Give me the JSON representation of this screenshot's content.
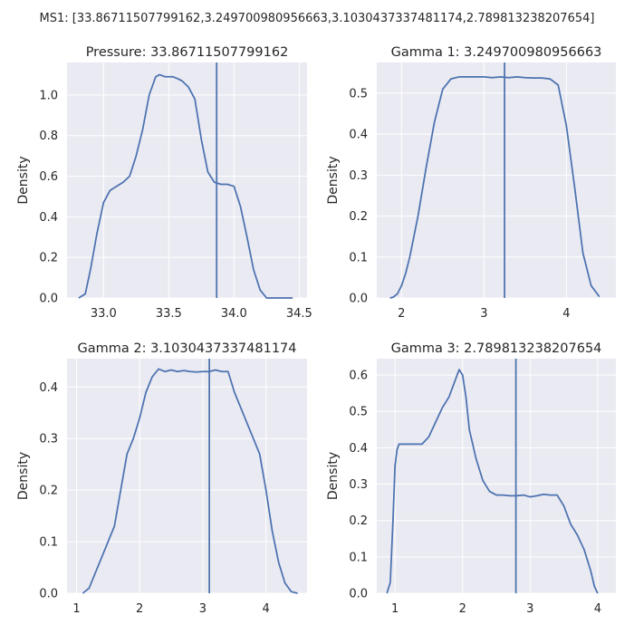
{
  "suptitle": "MS1: [33.86711507799162,3.249700980956663,3.1030437337481174,2.789813238207654]",
  "chart_data": [
    {
      "type": "line",
      "title": "Pressure: 33.86711507799162",
      "ylabel": "Density",
      "xlabel": "",
      "xlim": [
        32.72,
        34.56
      ],
      "ylim": [
        0,
        1.16
      ],
      "xticks": [
        33.0,
        33.5,
        34.0,
        34.5
      ],
      "xtick_labels": [
        "33.0",
        "33.5",
        "34.0",
        "34.5"
      ],
      "yticks": [
        0.0,
        0.2,
        0.4,
        0.6,
        0.8,
        1.0
      ],
      "ytick_labels": [
        "0.0",
        "0.2",
        "0.4",
        "0.6",
        "0.8",
        "1.0"
      ],
      "vline": 33.86711507799162,
      "grid": true,
      "series": [
        {
          "x": [
            32.81,
            32.86,
            32.9,
            32.95,
            33.0,
            33.05,
            33.1,
            33.15,
            33.2,
            33.25,
            33.3,
            33.35,
            33.4,
            33.43,
            33.47,
            33.5,
            33.53,
            33.57,
            33.6,
            33.65,
            33.7,
            33.75,
            33.8,
            33.85,
            33.9,
            33.95,
            34.0,
            34.05,
            34.1,
            34.15,
            34.2,
            34.25,
            34.3,
            34.35,
            34.4,
            34.45
          ],
          "y": [
            0.0,
            0.02,
            0.14,
            0.32,
            0.47,
            0.53,
            0.55,
            0.57,
            0.6,
            0.7,
            0.83,
            1.0,
            1.09,
            1.1,
            1.09,
            1.09,
            1.09,
            1.08,
            1.07,
            1.04,
            0.98,
            0.78,
            0.62,
            0.57,
            0.56,
            0.56,
            0.55,
            0.45,
            0.3,
            0.14,
            0.04,
            0.0,
            0.0,
            0.0,
            0.0,
            0.0
          ]
        }
      ]
    },
    {
      "type": "line",
      "title": "Gamma 1: 3.249700980956663",
      "ylabel": "Density",
      "xlabel": "",
      "xlim": [
        1.7,
        4.6
      ],
      "ylim": [
        0,
        0.575
      ],
      "xticks": [
        2,
        3,
        4
      ],
      "xtick_labels": [
        "2",
        "3",
        "4"
      ],
      "yticks": [
        0.0,
        0.1,
        0.2,
        0.3,
        0.4,
        0.5
      ],
      "ytick_labels": [
        "0.0",
        "0.1",
        "0.2",
        "0.3",
        "0.4",
        "0.5"
      ],
      "vline": 3.249700980956663,
      "grid": true,
      "series": [
        {
          "x": [
            1.86,
            1.9,
            1.95,
            2.0,
            2.05,
            2.1,
            2.2,
            2.3,
            2.4,
            2.5,
            2.6,
            2.7,
            2.8,
            2.9,
            3.0,
            3.1,
            3.2,
            3.3,
            3.4,
            3.5,
            3.6,
            3.7,
            3.8,
            3.9,
            4.0,
            4.1,
            4.2,
            4.3,
            4.4
          ],
          "y": [
            0.0,
            0.002,
            0.01,
            0.03,
            0.06,
            0.1,
            0.2,
            0.32,
            0.43,
            0.51,
            0.535,
            0.54,
            0.54,
            0.54,
            0.54,
            0.538,
            0.54,
            0.538,
            0.54,
            0.538,
            0.537,
            0.537,
            0.535,
            0.52,
            0.42,
            0.27,
            0.11,
            0.03,
            0.003
          ]
        }
      ]
    },
    {
      "type": "line",
      "title": "Gamma 2: 3.1030437337481174",
      "ylabel": "Density",
      "xlabel": "",
      "xlim": [
        0.85,
        4.65
      ],
      "ylim": [
        0,
        0.455
      ],
      "xticks": [
        1,
        2,
        3,
        4
      ],
      "xtick_labels": [
        "1",
        "2",
        "3",
        "4"
      ],
      "yticks": [
        0.0,
        0.1,
        0.2,
        0.3,
        0.4
      ],
      "ytick_labels": [
        "0.0",
        "0.1",
        "0.2",
        "0.3",
        "0.4"
      ],
      "vline": 3.1030437337481174,
      "grid": true,
      "series": [
        {
          "x": [
            1.1,
            1.2,
            1.3,
            1.4,
            1.5,
            1.6,
            1.7,
            1.8,
            1.9,
            2.0,
            2.1,
            2.2,
            2.3,
            2.4,
            2.5,
            2.6,
            2.7,
            2.8,
            2.9,
            3.0,
            3.1,
            3.2,
            3.3,
            3.4,
            3.5,
            3.6,
            3.7,
            3.8,
            3.9,
            4.0,
            4.1,
            4.2,
            4.3,
            4.4,
            4.5
          ],
          "y": [
            0.0,
            0.01,
            0.04,
            0.07,
            0.1,
            0.13,
            0.2,
            0.27,
            0.3,
            0.34,
            0.39,
            0.42,
            0.435,
            0.43,
            0.433,
            0.43,
            0.432,
            0.43,
            0.429,
            0.43,
            0.43,
            0.433,
            0.43,
            0.43,
            0.39,
            0.36,
            0.33,
            0.3,
            0.27,
            0.2,
            0.12,
            0.06,
            0.02,
            0.003,
            0.0
          ]
        }
      ]
    },
    {
      "type": "line",
      "title": "Gamma 3: 2.789813238207654",
      "ylabel": "Density",
      "xlabel": "",
      "xlim": [
        0.73,
        4.27
      ],
      "ylim": [
        0,
        0.645
      ],
      "xticks": [
        1,
        2,
        3,
        4
      ],
      "xtick_labels": [
        "1",
        "2",
        "3",
        "4"
      ],
      "yticks": [
        0.0,
        0.1,
        0.2,
        0.3,
        0.4,
        0.5,
        0.6
      ],
      "ytick_labels": [
        "0.0",
        "0.1",
        "0.2",
        "0.3",
        "0.4",
        "0.5",
        "0.6"
      ],
      "vline": 2.789813238207654,
      "grid": true,
      "series": [
        {
          "x": [
            0.88,
            0.93,
            0.97,
            1.0,
            1.03,
            1.06,
            1.1,
            1.2,
            1.3,
            1.4,
            1.5,
            1.6,
            1.7,
            1.8,
            1.9,
            1.95,
            2.0,
            2.05,
            2.1,
            2.2,
            2.3,
            2.4,
            2.5,
            2.6,
            2.7,
            2.8,
            2.9,
            3.0,
            3.1,
            3.2,
            3.3,
            3.4,
            3.5,
            3.6,
            3.7,
            3.8,
            3.9,
            3.95,
            4.0
          ],
          "y": [
            0.0,
            0.03,
            0.2,
            0.35,
            0.395,
            0.41,
            0.41,
            0.41,
            0.41,
            0.41,
            0.43,
            0.47,
            0.51,
            0.54,
            0.59,
            0.615,
            0.6,
            0.54,
            0.45,
            0.37,
            0.31,
            0.28,
            0.27,
            0.27,
            0.268,
            0.268,
            0.27,
            0.265,
            0.268,
            0.272,
            0.27,
            0.27,
            0.24,
            0.19,
            0.16,
            0.12,
            0.06,
            0.02,
            0.0
          ]
        }
      ]
    }
  ]
}
